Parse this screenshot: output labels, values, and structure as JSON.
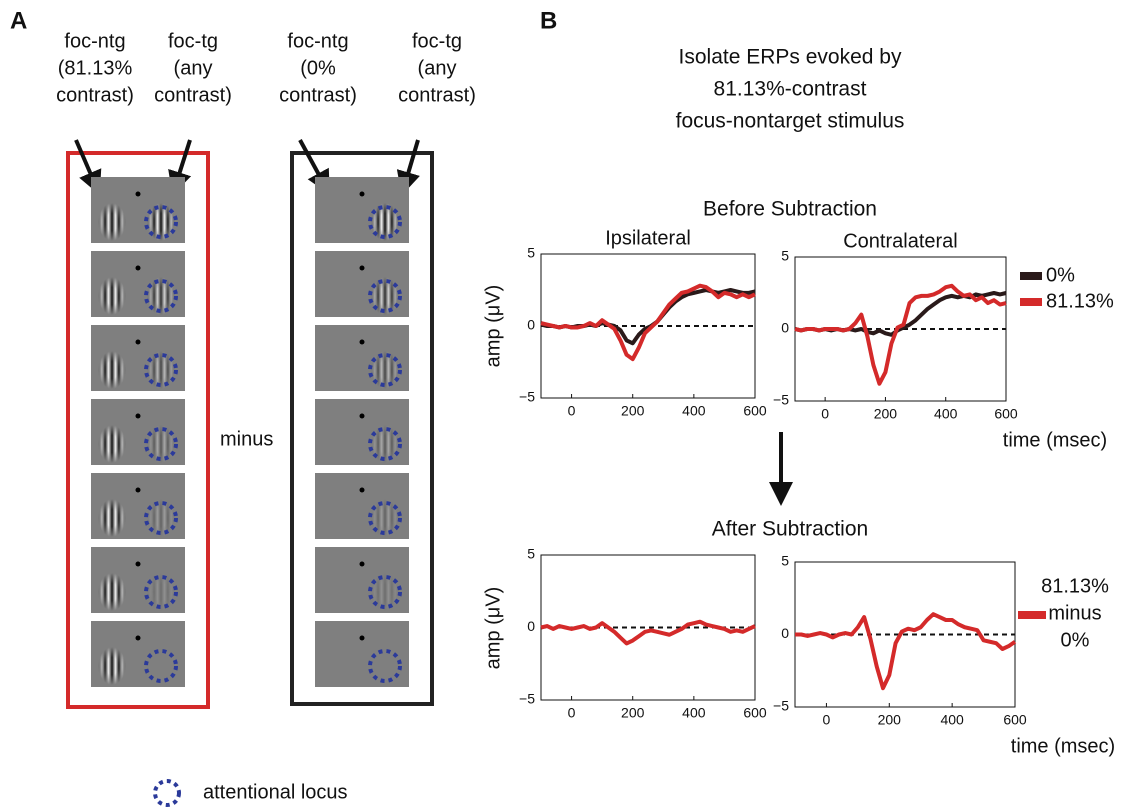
{
  "panel_a": {
    "label": "A",
    "column_labels": [
      [
        "foc-ntg",
        "(81.13%",
        "contrast)"
      ],
      [
        "foc-tg",
        "(any",
        "contrast)"
      ],
      [
        "foc-ntg",
        "(0%",
        "contrast)"
      ],
      [
        "foc-tg",
        "(any",
        "contrast)"
      ]
    ],
    "operator": "minus",
    "legend": "attentional locus"
  },
  "panel_b": {
    "label": "B",
    "title_lines": [
      "Isolate ERPs evoked by",
      "81.13%-contrast",
      "focus-nontarget stimulus"
    ],
    "before_title": "Before Subtraction",
    "after_title": "After Subtraction"
  },
  "chart_data": [
    {
      "type": "line",
      "title": "Ipsilateral",
      "y_label": "amp (μV)",
      "x": [
        -100,
        -80,
        -60,
        -40,
        -20,
        0,
        20,
        40,
        60,
        80,
        100,
        120,
        140,
        160,
        180,
        200,
        220,
        240,
        260,
        280,
        300,
        320,
        340,
        360,
        380,
        400,
        420,
        440,
        460,
        480,
        500,
        520,
        540,
        560,
        580,
        600
      ],
      "xlim": [
        -100,
        600
      ],
      "ylim": [
        -5,
        5
      ],
      "xticks": [
        0,
        200,
        400,
        600
      ],
      "yticks": [
        5,
        0,
        {
          "value": -5,
          "label": "−5"
        }
      ],
      "reference_line": 0,
      "series": [
        {
          "color": "#2a1a1a",
          "values": [
            0.1,
            0,
            0,
            -0.1,
            0,
            -0.1,
            0,
            0,
            0.1,
            0,
            0.2,
            0.1,
            0,
            -0.3,
            -1.0,
            -1.2,
            -0.6,
            -0.2,
            0,
            0.3,
            0.8,
            1.3,
            1.7,
            2.0,
            2.2,
            2.3,
            2.4,
            2.5,
            2.4,
            2.3,
            2.4,
            2.5,
            2.4,
            2.3,
            2.3,
            2.4
          ]
        },
        {
          "color": "#d42a2a",
          "values": [
            0.2,
            0.1,
            0,
            -0.1,
            0,
            -0.1,
            -0.1,
            0,
            0.2,
            0,
            0.4,
            0.1,
            -0.2,
            -1.0,
            -2.0,
            -2.3,
            -1.5,
            -0.5,
            -0.1,
            0.3,
            0.9,
            1.5,
            1.9,
            2.3,
            2.4,
            2.6,
            2.8,
            2.7,
            2.4,
            2.0,
            2.3,
            2.2,
            2.0,
            2.2,
            2.0,
            2.2
          ]
        }
      ]
    },
    {
      "type": "line",
      "title": "Contralateral",
      "x_label": "time (msec)",
      "x": [
        -100,
        -80,
        -60,
        -40,
        -20,
        0,
        20,
        40,
        60,
        80,
        100,
        120,
        140,
        160,
        180,
        200,
        220,
        240,
        260,
        280,
        300,
        320,
        340,
        360,
        380,
        400,
        420,
        440,
        460,
        480,
        500,
        520,
        540,
        560,
        580,
        600
      ],
      "xlim": [
        -100,
        600
      ],
      "ylim": [
        -5,
        5
      ],
      "xticks": [
        0,
        200,
        400,
        600
      ],
      "yticks": [
        5,
        0,
        {
          "value": -5,
          "label": "−5"
        }
      ],
      "reference_line": 0,
      "series": [
        {
          "name": "0%",
          "color": "#2a1a1a",
          "values": [
            0,
            -0.1,
            0,
            0,
            -0.1,
            0,
            -0.1,
            0,
            -0.1,
            0,
            -0.1,
            0,
            -0.2,
            -0.3,
            -0.1,
            -0.3,
            -0.4,
            -0.1,
            0.1,
            0.3,
            0.6,
            1.0,
            1.4,
            1.7,
            2.0,
            2.2,
            2.3,
            2.2,
            2.3,
            2.2,
            2.4,
            2.3,
            2.4,
            2.5,
            2.4,
            2.5
          ]
        },
        {
          "name": "81.13%",
          "color": "#d42a2a",
          "values": [
            0,
            -0.1,
            0,
            0,
            -0.1,
            0,
            0,
            0,
            -0.1,
            0,
            0.4,
            1.0,
            -0.5,
            -2.5,
            -3.8,
            -3.0,
            -1.0,
            0.1,
            0.3,
            1.8,
            2.2,
            2.3,
            2.3,
            2.4,
            2.6,
            2.9,
            3.0,
            2.6,
            2.3,
            2.4,
            2.0,
            2.2,
            1.8,
            2.0,
            1.7,
            1.8
          ]
        }
      ]
    },
    {
      "type": "line",
      "y_label": "amp (μV)",
      "x": [
        -100,
        -80,
        -60,
        -40,
        -20,
        0,
        20,
        40,
        60,
        80,
        100,
        120,
        140,
        160,
        180,
        200,
        220,
        240,
        260,
        280,
        300,
        320,
        340,
        360,
        380,
        400,
        420,
        440,
        460,
        480,
        500,
        520,
        540,
        560,
        580,
        600
      ],
      "xlim": [
        -100,
        600
      ],
      "ylim": [
        -5,
        5
      ],
      "xticks": [
        0,
        200,
        400,
        600
      ],
      "yticks": [
        5,
        0,
        {
          "value": -5,
          "label": "−5"
        }
      ],
      "reference_line": 0,
      "series": [
        {
          "color": "#d42a2a",
          "values": [
            0,
            0.1,
            -0.1,
            0.1,
            0,
            -0.1,
            0,
            0.1,
            -0.1,
            0,
            0.3,
            0,
            -0.3,
            -0.7,
            -1.1,
            -0.9,
            -0.6,
            -0.3,
            -0.2,
            -0.3,
            -0.4,
            -0.5,
            -0.3,
            -0.1,
            0.2,
            0.3,
            0.4,
            0.2,
            0.1,
            0,
            -0.1,
            -0.3,
            -0.2,
            -0.3,
            -0.1,
            0.1
          ]
        }
      ]
    },
    {
      "type": "line",
      "x_label": "time (msec)",
      "legend_lines": [
        "81.13%",
        "minus",
        "0%"
      ],
      "x": [
        -100,
        -80,
        -60,
        -40,
        -20,
        0,
        20,
        40,
        60,
        80,
        100,
        120,
        140,
        160,
        180,
        200,
        220,
        240,
        260,
        280,
        300,
        320,
        340,
        360,
        380,
        400,
        420,
        440,
        460,
        480,
        500,
        520,
        540,
        560,
        580,
        600
      ],
      "xlim": [
        -100,
        600
      ],
      "ylim": [
        -5,
        5
      ],
      "xticks": [
        0,
        200,
        400,
        600
      ],
      "yticks": [
        5,
        0,
        {
          "value": -5,
          "label": "−5"
        }
      ],
      "reference_line": 0,
      "series": [
        {
          "color": "#d42a2a",
          "values": [
            0,
            0,
            -0.1,
            0,
            0.1,
            0,
            -0.2,
            0,
            0.1,
            0,
            0.5,
            1.2,
            -0.3,
            -2.2,
            -3.7,
            -2.8,
            -0.6,
            0.2,
            0.4,
            0.3,
            0.5,
            1.0,
            1.4,
            1.2,
            1.0,
            1.0,
            0.7,
            0.5,
            0.4,
            0.3,
            -0.4,
            -0.5,
            -0.6,
            -1.0,
            -0.8,
            -0.5
          ]
        }
      ]
    }
  ]
}
